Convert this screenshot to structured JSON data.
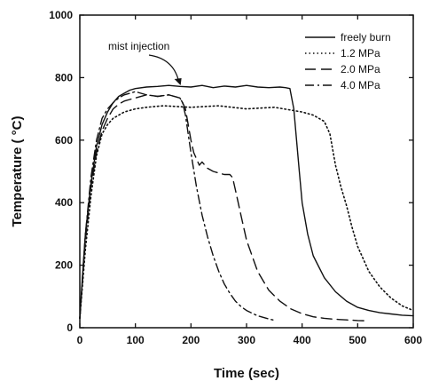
{
  "chart_data": {
    "type": "line",
    "xlabel": "Time (sec)",
    "ylabel": "Temperature ( °C)",
    "xlim": [
      0,
      600
    ],
    "ylim": [
      0,
      1000
    ],
    "x_ticks": [
      0,
      100,
      200,
      300,
      400,
      500,
      600
    ],
    "y_ticks": [
      0,
      200,
      400,
      600,
      800,
      1000
    ],
    "grid": false,
    "legend_position": "top-right",
    "annotation": {
      "text": "mist injection",
      "x": 175,
      "y": 770
    },
    "series": [
      {
        "name": "freely burn",
        "style": "solid",
        "x": [
          0,
          5,
          10,
          20,
          30,
          40,
          50,
          60,
          70,
          80,
          90,
          100,
          120,
          140,
          160,
          180,
          200,
          220,
          240,
          260,
          280,
          300,
          320,
          340,
          360,
          370,
          378,
          385,
          390,
          395,
          400,
          410,
          420,
          440,
          460,
          480,
          500,
          520,
          540,
          560,
          580,
          600
        ],
        "y": [
          30,
          170,
          300,
          460,
          580,
          650,
          690,
          720,
          740,
          750,
          760,
          765,
          770,
          772,
          775,
          772,
          770,
          775,
          768,
          773,
          770,
          775,
          770,
          768,
          770,
          768,
          765,
          700,
          600,
          500,
          400,
          300,
          230,
          160,
          115,
          85,
          65,
          55,
          48,
          44,
          40,
          38
        ]
      },
      {
        "name": "1.2 MPa",
        "style": "dotted",
        "x": [
          0,
          10,
          20,
          30,
          40,
          50,
          60,
          80,
          100,
          120,
          150,
          200,
          250,
          300,
          350,
          400,
          420,
          440,
          450,
          460,
          470,
          480,
          490,
          500,
          520,
          540,
          560,
          580,
          600
        ],
        "y": [
          30,
          250,
          420,
          550,
          620,
          650,
          670,
          690,
          700,
          705,
          710,
          705,
          710,
          700,
          705,
          690,
          680,
          660,
          620,
          520,
          450,
          390,
          320,
          260,
          180,
          130,
          95,
          70,
          55
        ]
      },
      {
        "name": "2.0 MPa",
        "style": "dashed",
        "x": [
          0,
          10,
          20,
          30,
          40,
          50,
          60,
          70,
          80,
          90,
          100,
          120,
          140,
          160,
          170,
          180,
          185,
          190,
          195,
          200,
          205,
          210,
          215,
          220,
          230,
          240,
          250,
          260,
          270,
          275,
          280,
          290,
          300,
          320,
          340,
          360,
          380,
          400,
          420,
          440,
          460,
          480,
          500,
          520
        ],
        "y": [
          30,
          280,
          450,
          560,
          630,
          670,
          700,
          715,
          725,
          730,
          735,
          745,
          740,
          745,
          740,
          735,
          720,
          700,
          650,
          600,
          560,
          540,
          520,
          530,
          510,
          500,
          495,
          490,
          490,
          480,
          440,
          360,
          280,
          180,
          120,
          85,
          60,
          45,
          35,
          30,
          27,
          25,
          23,
          22
        ]
      },
      {
        "name": "4.0 MPa",
        "style": "dashdot",
        "x": [
          0,
          10,
          20,
          30,
          40,
          50,
          60,
          70,
          80,
          90,
          100,
          110,
          120,
          140,
          160,
          170,
          180,
          185,
          190,
          195,
          200,
          210,
          220,
          230,
          240,
          250,
          260,
          270,
          280,
          290,
          300,
          320,
          340,
          350
        ],
        "y": [
          30,
          300,
          480,
          600,
          670,
          700,
          720,
          735,
          745,
          750,
          755,
          750,
          745,
          740,
          745,
          740,
          735,
          720,
          680,
          620,
          560,
          450,
          360,
          290,
          230,
          180,
          140,
          110,
          85,
          68,
          55,
          38,
          28,
          24
        ]
      }
    ]
  }
}
